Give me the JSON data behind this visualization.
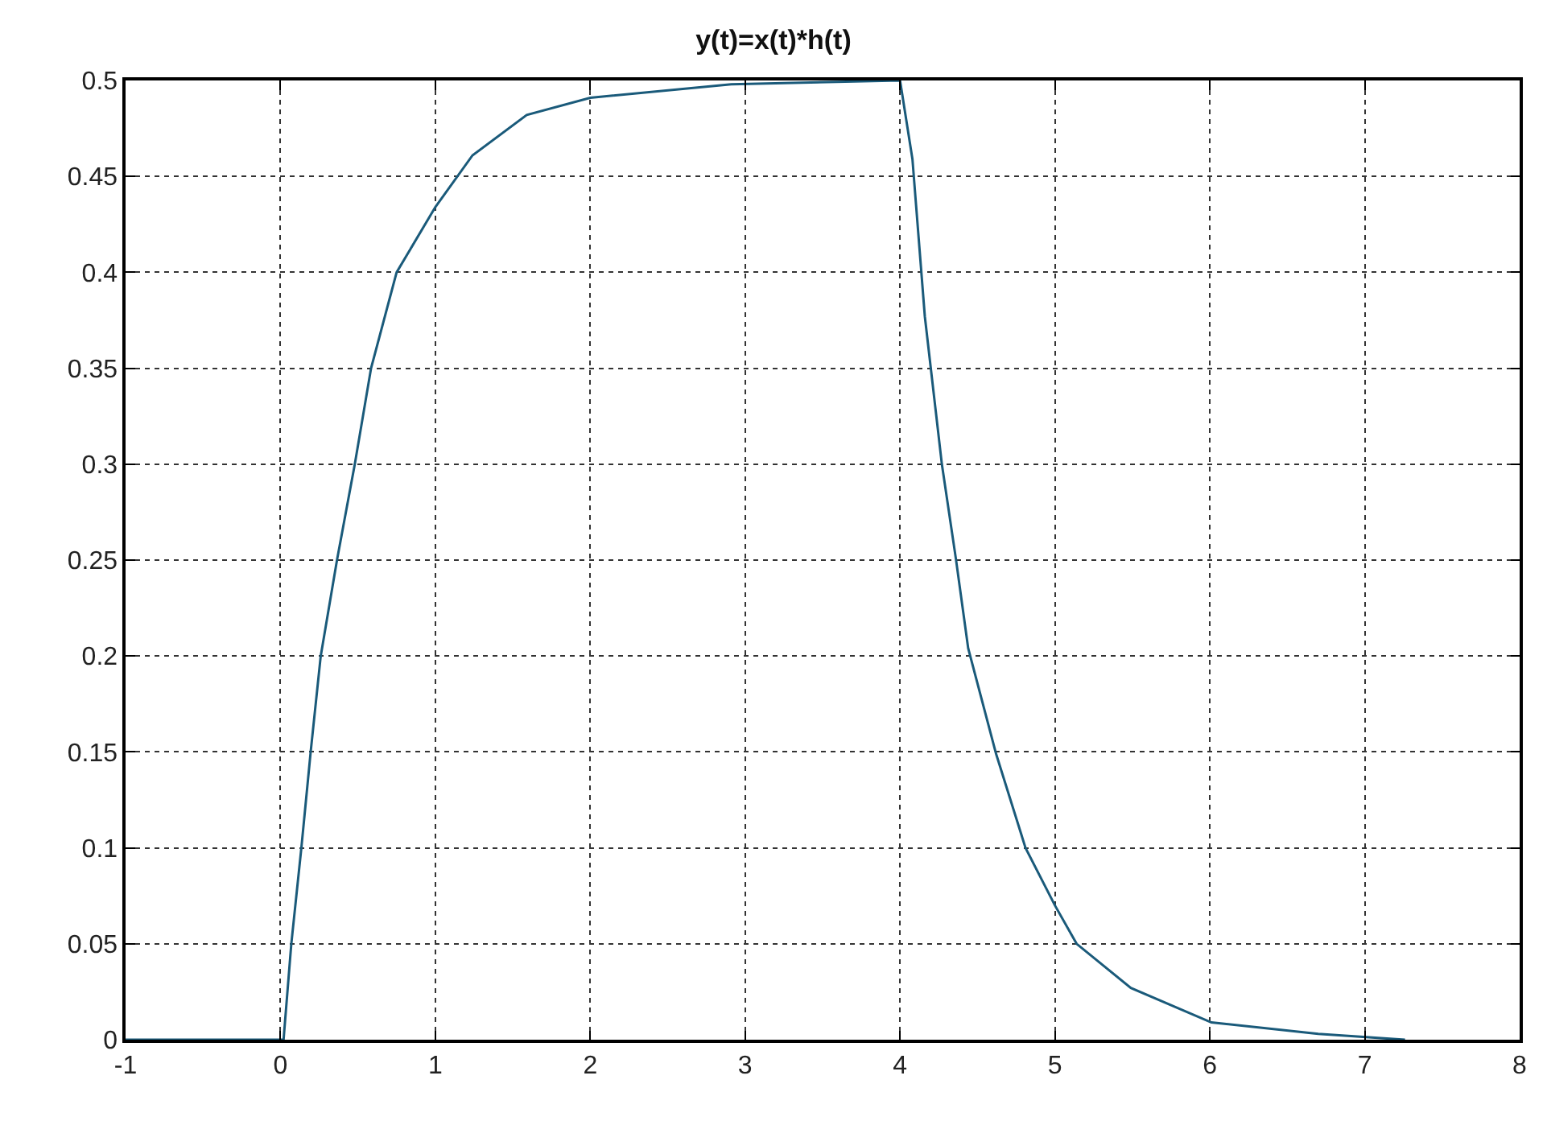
{
  "chart_data": {
    "type": "line",
    "title": "y(t)=x(t)*h(t)",
    "series": [
      {
        "color": "#1a5a7a",
        "x": [
          -1,
          0,
          0.02,
          0.07,
          0.135,
          0.195,
          0.26,
          0.365,
          0.48,
          0.585,
          0.75,
          1.0,
          1.24,
          1.59,
          2.0,
          2.91,
          4.0,
          4.08,
          4.16,
          4.27,
          4.36,
          4.44,
          4.62,
          4.81,
          5.0,
          5.14,
          5.49,
          6.01,
          6.7,
          7.26
        ],
        "values": [
          0,
          0,
          0,
          0.05,
          0.1,
          0.15,
          0.2,
          0.25,
          0.3,
          0.35,
          0.4,
          0.434,
          0.461,
          0.482,
          0.491,
          0.498,
          0.5,
          0.459,
          0.377,
          0.3,
          0.251,
          0.204,
          0.149,
          0.1,
          0.07,
          0.05,
          0.027,
          0.009,
          0.003,
          0
        ]
      }
    ],
    "xlim": [
      -1,
      8
    ],
    "xticks": [
      -1,
      0,
      1,
      2,
      3,
      4,
      5,
      6,
      7,
      8
    ],
    "ylim": [
      0,
      0.5
    ],
    "yticks": [
      0,
      0.05,
      0.1,
      0.15,
      0.2,
      0.25,
      0.3,
      0.35,
      0.4,
      0.45,
      0.5
    ],
    "grid": true,
    "marker": "none",
    "line_style": "solid"
  }
}
